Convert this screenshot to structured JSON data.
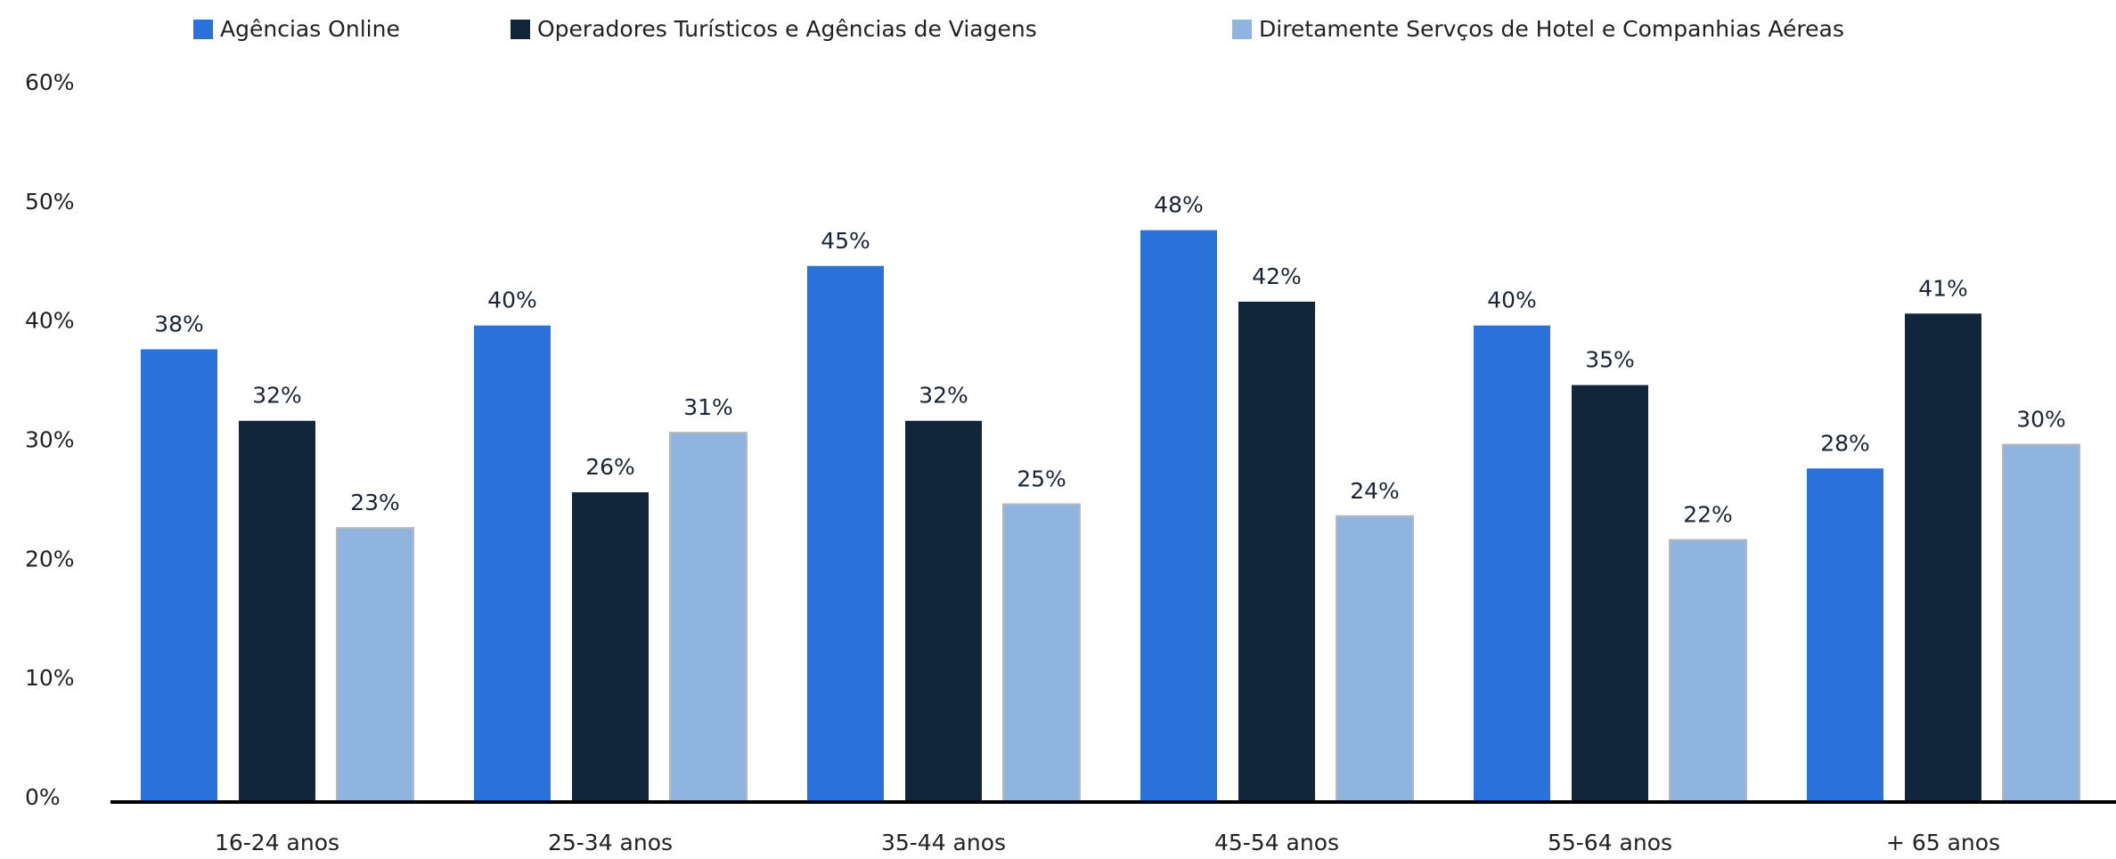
{
  "chart_data": {
    "type": "bar",
    "categories": [
      "16-24 anos",
      "25-34 anos",
      "35-44 anos",
      "45-54 anos",
      "55-64 anos",
      "+ 65 anos"
    ],
    "series": [
      {
        "name": "Agências Online",
        "color": "#2a72d9",
        "values": [
          38,
          40,
          45,
          48,
          40,
          28
        ],
        "value_labels": [
          "38%",
          "40%",
          "45%",
          "48%",
          "40%",
          "28%"
        ]
      },
      {
        "name": "Operadores Turísticos e Agências de Viagens",
        "color": "#12263b",
        "values": [
          32,
          26,
          32,
          42,
          35,
          41
        ],
        "value_labels": [
          "32%",
          "26%",
          "32%",
          "42%",
          "35%",
          "41%"
        ]
      },
      {
        "name": "Diretamente Servços de Hotel e Companhias Aéreas",
        "color": "#8fb4e0",
        "values": [
          23,
          31,
          25,
          24,
          22,
          30
        ],
        "value_labels": [
          "23%",
          "31%",
          "25%",
          "24%",
          "22%",
          "30%"
        ]
      }
    ],
    "ylim": [
      0,
      60
    ],
    "yticks": [
      {
        "value": 0,
        "label": "0%"
      },
      {
        "value": 10,
        "label": "10%"
      },
      {
        "value": 20,
        "label": "20%"
      },
      {
        "value": 30,
        "label": "30%"
      },
      {
        "value": 40,
        "label": "40%"
      },
      {
        "value": 50,
        "label": "50%"
      },
      {
        "value": 60,
        "label": "60%"
      }
    ],
    "grid": false
  }
}
